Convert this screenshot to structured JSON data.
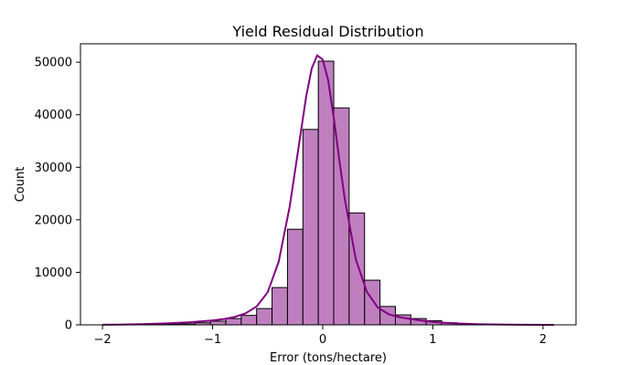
{
  "chart_data": {
    "type": "bar",
    "subtype": "histogram-with-kde",
    "title": "Yield Residual Distribution",
    "xlabel": "Error (tons/hectare)",
    "ylabel": "Count",
    "xlim": [
      -2.2,
      2.3
    ],
    "ylim": [
      0,
      53500
    ],
    "xticks": [
      -2,
      -1,
      0,
      1,
      2
    ],
    "xtick_labels": [
      "−2",
      "−1",
      "0",
      "1",
      "2"
    ],
    "yticks": [
      0,
      10000,
      20000,
      30000,
      40000,
      50000
    ],
    "ytick_labels": [
      "0",
      "10000",
      "20000",
      "30000",
      "40000",
      "50000"
    ],
    "grid": false,
    "bar_color": "#BF7FBF",
    "bar_edge_color": "#000000",
    "kde_color": "#800080",
    "bins": [
      {
        "x0": -2.0,
        "x1": -1.86,
        "count": 0
      },
      {
        "x0": -1.86,
        "x1": -1.72,
        "count": 0
      },
      {
        "x0": -1.72,
        "x1": -1.58,
        "count": 0
      },
      {
        "x0": -1.58,
        "x1": -1.44,
        "count": 50
      },
      {
        "x0": -1.44,
        "x1": -1.3,
        "count": 100
      },
      {
        "x0": -1.3,
        "x1": -1.16,
        "count": 200
      },
      {
        "x0": -1.16,
        "x1": -1.02,
        "count": 400
      },
      {
        "x0": -1.02,
        "x1": -0.88,
        "count": 700
      },
      {
        "x0": -0.88,
        "x1": -0.74,
        "count": 1200
      },
      {
        "x0": -0.74,
        "x1": -0.6,
        "count": 1800
      },
      {
        "x0": -0.6,
        "x1": -0.46,
        "count": 3100
      },
      {
        "x0": -0.46,
        "x1": -0.32,
        "count": 7100
      },
      {
        "x0": -0.32,
        "x1": -0.18,
        "count": 18200
      },
      {
        "x0": -0.18,
        "x1": -0.04,
        "count": 37200
      },
      {
        "x0": -0.04,
        "x1": 0.1,
        "count": 50200
      },
      {
        "x0": 0.1,
        "x1": 0.24,
        "count": 41300
      },
      {
        "x0": 0.24,
        "x1": 0.38,
        "count": 21300
      },
      {
        "x0": 0.38,
        "x1": 0.52,
        "count": 8500
      },
      {
        "x0": 0.52,
        "x1": 0.66,
        "count": 3500
      },
      {
        "x0": 0.66,
        "x1": 0.8,
        "count": 1900
      },
      {
        "x0": 0.8,
        "x1": 0.94,
        "count": 1200
      },
      {
        "x0": 0.94,
        "x1": 1.08,
        "count": 800
      },
      {
        "x0": 1.08,
        "x1": 1.22,
        "count": 400
      },
      {
        "x0": 1.22,
        "x1": 1.36,
        "count": 200
      },
      {
        "x0": 1.36,
        "x1": 1.5,
        "count": 100
      },
      {
        "x0": 1.5,
        "x1": 1.64,
        "count": 50
      },
      {
        "x0": 1.64,
        "x1": 1.78,
        "count": 0
      },
      {
        "x0": 1.78,
        "x1": 1.92,
        "count": 0
      },
      {
        "x0": 1.92,
        "x1": 2.06,
        "count": 0
      }
    ],
    "kde": {
      "x": [
        -2.0,
        -1.8,
        -1.6,
        -1.4,
        -1.2,
        -1.0,
        -0.9,
        -0.8,
        -0.7,
        -0.6,
        -0.5,
        -0.4,
        -0.3,
        -0.2,
        -0.15,
        -0.1,
        -0.05,
        0.0,
        0.05,
        0.1,
        0.15,
        0.2,
        0.3,
        0.4,
        0.5,
        0.6,
        0.7,
        0.8,
        0.9,
        1.0,
        1.2,
        1.4,
        1.6,
        1.8,
        2.1
      ],
      "y": [
        20,
        60,
        150,
        300,
        500,
        850,
        1100,
        1500,
        2200,
        3500,
        6200,
        12000,
        22500,
        36500,
        43500,
        48800,
        51300,
        50500,
        46500,
        39500,
        31500,
        24000,
        12500,
        6300,
        3300,
        2000,
        1450,
        1100,
        800,
        550,
        280,
        130,
        60,
        25,
        10
      ]
    }
  }
}
